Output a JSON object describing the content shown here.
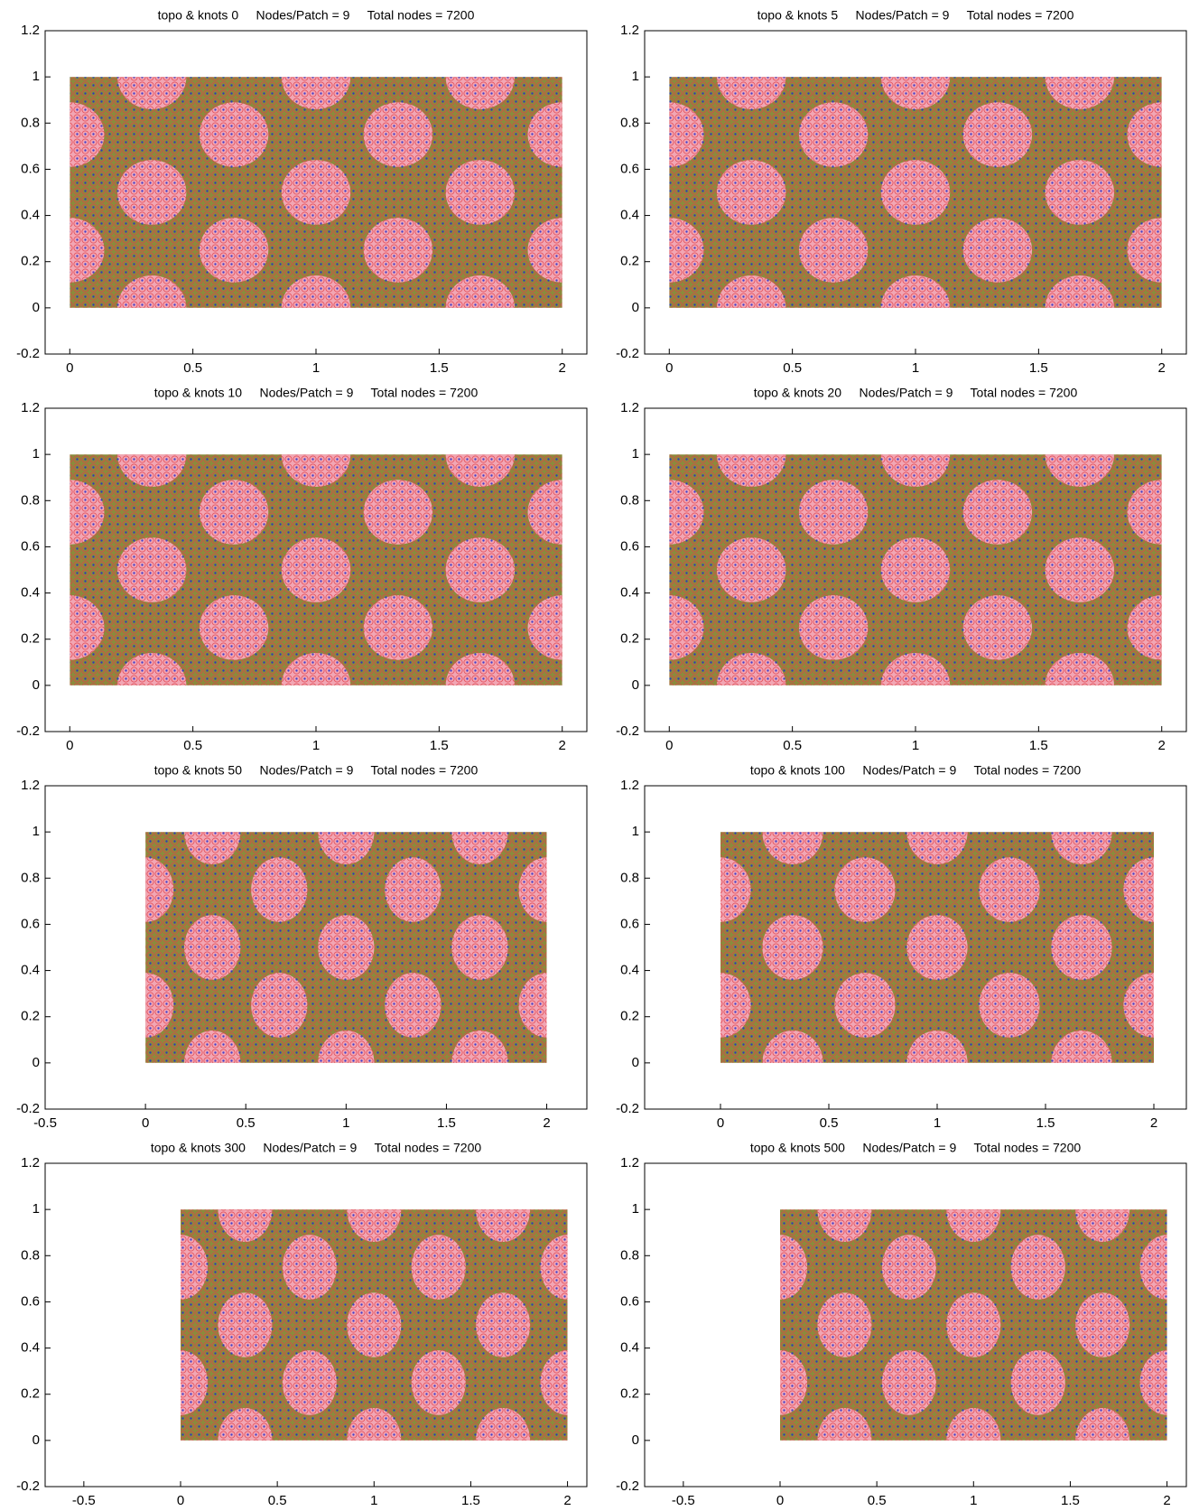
{
  "chart_data": [
    {
      "type": "scatter",
      "title": "topo & knots 0     Nodes/Patch = 9     Total nodes = 7200",
      "xlim": [
        -0.1,
        2.1
      ],
      "ylim": [
        -0.2,
        1.2
      ],
      "xticks": [
        0,
        0.5,
        1,
        1.5,
        2
      ],
      "yticks": [
        -0.2,
        0,
        0.2,
        0.4,
        0.6,
        0.8,
        1,
        1.2
      ]
    },
    {
      "type": "scatter",
      "title": "topo & knots 5     Nodes/Patch = 9     Total nodes = 7200",
      "xlim": [
        -0.1,
        2.1
      ],
      "ylim": [
        -0.2,
        1.2
      ],
      "xticks": [
        0,
        0.5,
        1,
        1.5,
        2
      ],
      "yticks": [
        -0.2,
        0,
        0.2,
        0.4,
        0.6,
        0.8,
        1,
        1.2
      ]
    },
    {
      "type": "scatter",
      "title": "topo & knots 10     Nodes/Patch = 9     Total nodes = 7200",
      "xlim": [
        -0.1,
        2.1
      ],
      "ylim": [
        -0.2,
        1.2
      ],
      "xticks": [
        0,
        0.5,
        1,
        1.5,
        2
      ],
      "yticks": [
        -0.2,
        0,
        0.2,
        0.4,
        0.6,
        0.8,
        1,
        1.2
      ]
    },
    {
      "type": "scatter",
      "title": "topo & knots 20     Nodes/Patch = 9     Total nodes = 7200",
      "xlim": [
        -0.1,
        2.1
      ],
      "ylim": [
        -0.2,
        1.2
      ],
      "xticks": [
        0,
        0.5,
        1,
        1.5,
        2
      ],
      "yticks": [
        -0.2,
        0,
        0.2,
        0.4,
        0.6,
        0.8,
        1,
        1.2
      ]
    },
    {
      "type": "scatter",
      "title": "topo & knots 50     Nodes/Patch = 9     Total nodes = 7200",
      "xlim": [
        -0.5,
        2.2
      ],
      "ylim": [
        -0.2,
        1.2
      ],
      "xticks": [
        -0.5,
        0,
        0.5,
        1,
        1.5,
        2
      ],
      "yticks": [
        -0.2,
        0,
        0.2,
        0.4,
        0.6,
        0.8,
        1,
        1.2
      ]
    },
    {
      "type": "scatter",
      "title": "topo & knots 100     Nodes/Patch = 9     Total nodes = 7200",
      "xlim": [
        -0.35,
        2.15
      ],
      "ylim": [
        -0.2,
        1.2
      ],
      "xticks": [
        0,
        0.5,
        1,
        1.5,
        2
      ],
      "yticks": [
        -0.2,
        0,
        0.2,
        0.4,
        0.6,
        0.8,
        1,
        1.2
      ]
    },
    {
      "type": "scatter",
      "title": "topo & knots 300     Nodes/Patch = 9     Total nodes = 7200",
      "xlim": [
        -0.7,
        2.1
      ],
      "ylim": [
        -0.2,
        1.2
      ],
      "xticks": [
        -0.5,
        0,
        0.5,
        1,
        1.5,
        2
      ],
      "yticks": [
        -0.2,
        0,
        0.2,
        0.4,
        0.6,
        0.8,
        1,
        1.2
      ]
    },
    {
      "type": "scatter",
      "title": "topo & knots 500     Nodes/Patch = 9     Total nodes = 7200",
      "xlim": [
        -0.7,
        2.1
      ],
      "ylim": [
        -0.2,
        1.2
      ],
      "xticks": [
        -0.5,
        0,
        0.5,
        1,
        1.5,
        2
      ],
      "yticks": [
        -0.2,
        0,
        0.2,
        0.4,
        0.6,
        0.8,
        1,
        1.2
      ]
    }
  ]
}
